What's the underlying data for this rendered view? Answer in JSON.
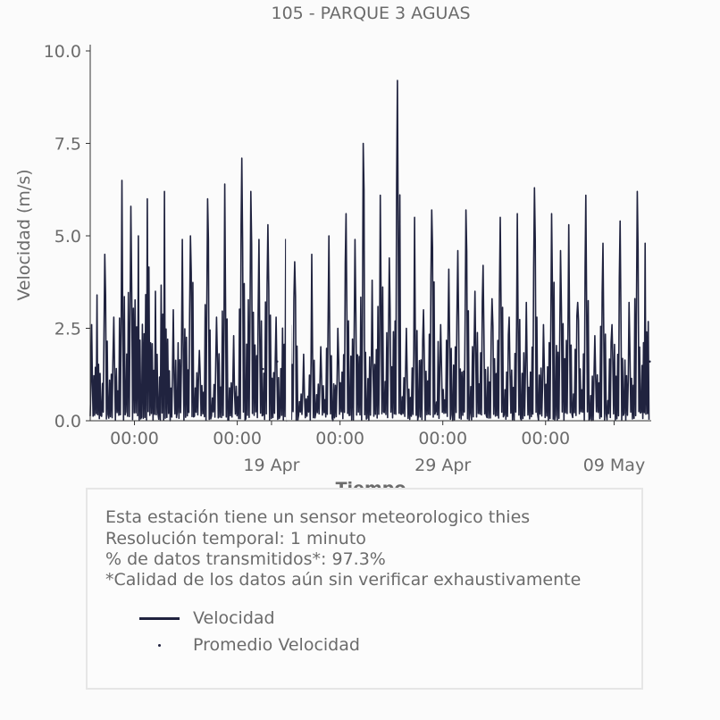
{
  "chart_data": {
    "type": "line",
    "title": "105 - PARQUE 3 AGUAS",
    "xlabel": "Tiempo",
    "ylabel": "Velocidad (m/s)",
    "ylim": [
      0,
      10
    ],
    "yticks": [
      "0.0",
      "2.5",
      "5.0",
      "7.5",
      "10.0"
    ],
    "xlim": [
      "2024-04-08T10:00",
      "2024-05-11T04:00"
    ],
    "xticks": [
      {
        "t": "2024-04-11T00:00",
        "label": "00:00",
        "sub": ""
      },
      {
        "t": "2024-04-17T00:00",
        "label": "00:00",
        "sub": ""
      },
      {
        "t": "2024-04-19T00:00",
        "label": "",
        "sub": "19 Apr"
      },
      {
        "t": "2024-04-23T00:00",
        "label": "00:00",
        "sub": ""
      },
      {
        "t": "2024-04-29T00:00",
        "label": "00:00",
        "sub": "29 Apr"
      },
      {
        "t": "2024-05-05T00:00",
        "label": "00:00",
        "sub": ""
      },
      {
        "t": "2024-05-09T00:00",
        "label": "",
        "sub": "09 May"
      }
    ],
    "grid": false,
    "series": [
      {
        "name": "Velocidad",
        "color": "#20233f",
        "x": [
          "2024-04-08T10:00",
          "2024-04-08T14:00",
          "2024-04-09T02:00",
          "2024-04-09T12:00",
          "2024-04-10T02:00",
          "2024-04-10T12:00",
          "2024-04-11T02:00",
          "2024-04-11T10:00",
          "2024-04-12T02:00",
          "2024-04-12T10:00",
          "2024-04-13T02:00",
          "2024-04-13T12:00",
          "2024-04-14T02:00",
          "2024-04-14T12:00",
          "2024-04-15T02:00",
          "2024-04-15T12:00",
          "2024-04-16T02:00",
          "2024-04-16T12:00",
          "2024-04-17T02:00",
          "2024-04-17T12:00",
          "2024-04-18T02:00",
          "2024-04-18T12:00",
          "2024-04-19T02:00",
          "2024-04-19T12:00",
          "2024-04-20T04:00",
          "2024-04-20T14:00",
          "2024-04-21T04:00",
          "2024-04-21T14:00",
          "2024-04-22T04:00",
          "2024-04-22T14:00",
          "2024-04-23T04:00",
          "2024-04-23T14:00",
          "2024-04-24T04:00",
          "2024-04-24T14:00",
          "2024-04-25T04:00",
          "2024-04-25T14:00",
          "2024-04-26T04:00",
          "2024-04-26T14:00",
          "2024-04-27T04:00",
          "2024-04-27T14:00",
          "2024-04-28T04:00",
          "2024-04-28T14:00",
          "2024-04-29T04:00",
          "2024-04-29T14:00",
          "2024-04-30T04:00",
          "2024-04-30T14:00",
          "2024-05-01T04:00",
          "2024-05-01T14:00",
          "2024-05-02T04:00",
          "2024-05-02T14:00",
          "2024-05-03T04:00",
          "2024-05-03T14:00",
          "2024-05-04T04:00",
          "2024-05-04T14:00",
          "2024-05-05T04:00",
          "2024-05-05T14:00",
          "2024-05-06T04:00",
          "2024-05-06T14:00",
          "2024-05-07T04:00",
          "2024-05-07T14:00",
          "2024-05-08T04:00",
          "2024-05-08T14:00",
          "2024-05-09T04:00",
          "2024-05-09T14:00",
          "2024-05-10T04:00",
          "2024-05-10T14:00",
          "2024-05-11T02:00"
        ],
        "values": [
          2.6,
          3.4,
          4.5,
          2.8,
          6.5,
          5.8,
          5.0,
          6.0,
          3.5,
          6.2,
          3.0,
          4.9,
          5.0,
          1.9,
          6.0,
          2.8,
          6.4,
          2.3,
          7.1,
          6.2,
          4.9,
          5.3,
          2.8,
          4.9,
          4.3,
          1.8,
          4.5,
          2.0,
          5.0,
          2.5,
          5.6,
          4.9,
          7.5,
          3.8,
          6.1,
          4.4,
          9.2,
          2.5,
          5.5,
          3.0,
          5.7,
          2.6,
          4.1,
          4.6,
          5.7,
          3.5,
          4.2,
          3.3,
          5.5,
          2.8,
          5.6,
          3.2,
          6.3,
          2.6,
          5.6,
          4.6,
          5.3,
          3.2,
          6.1,
          2.3,
          4.8,
          2.6,
          5.4,
          3.2,
          6.2,
          4.8,
          5.4
        ]
      },
      {
        "name": "Promedio Velocidad",
        "color": "#20233f",
        "x": [
          "2024-04-17T14:00",
          "2024-04-18T12:00",
          "2024-04-19T08:00",
          "2024-05-10T22:00",
          "2024-05-11T02:00"
        ],
        "values": [
          1.6,
          1.4,
          1.6,
          1.6,
          1.6
        ]
      }
    ]
  },
  "info": {
    "line1": "Esta estación tiene un sensor meteorologico thies",
    "line2": "Resolución temporal: 1 minuto",
    "line3": "% de datos transmitidos*: 97.3%",
    "line4": "*Calidad de los datos aún sin verificar exhaustivamente"
  },
  "legend": {
    "item1": "Velocidad",
    "item2": "Promedio Velocidad"
  }
}
